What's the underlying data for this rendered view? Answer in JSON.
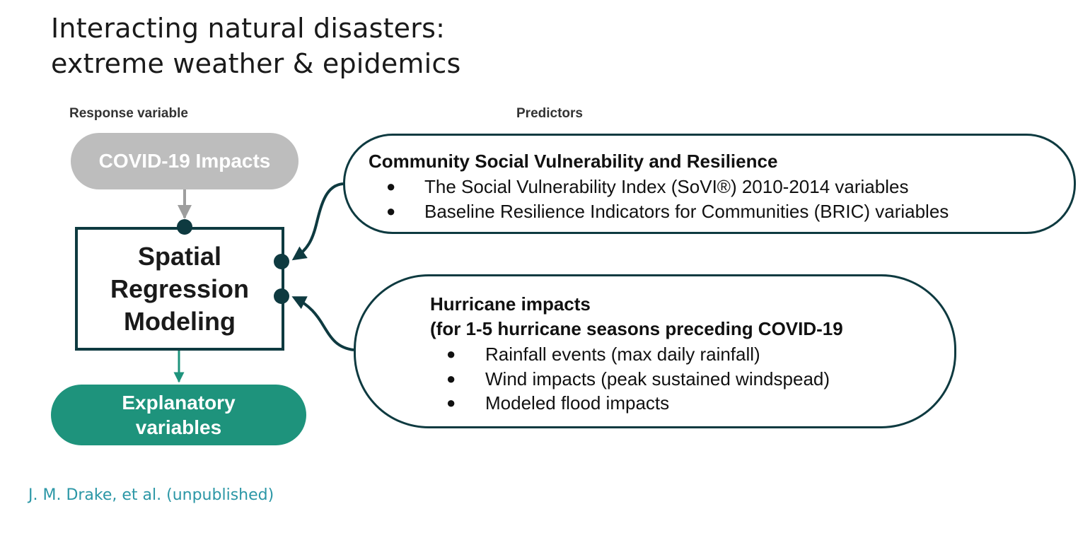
{
  "title": {
    "line1": "Interacting natural disasters:",
    "line2": "extreme weather & epidemics"
  },
  "labels": {
    "response": "Response variable",
    "predictors": "Predictors"
  },
  "nodes": {
    "covid": "COVID-19 Impacts",
    "model": [
      "Spatial",
      "Regression",
      "Modeling"
    ],
    "explanatory": [
      "Explanatory",
      "variables"
    ]
  },
  "predictor1": {
    "heading": "Community Social Vulnerability and Resilience",
    "items": [
      "The Social Vulnerability Index (SoVI®) 2010-2014 variables",
      "Baseline Resilience Indicators for Communities (BRIC) variables"
    ]
  },
  "predictor2": {
    "heading1": "Hurricane impacts",
    "heading2": "(for 1-5 hurricane seasons preceding COVID-19",
    "items": [
      "Rainfall events (max daily rainfall)",
      "Wind impacts (peak sustained windspead)",
      "Modeled flood impacts"
    ]
  },
  "bullet_char": "●",
  "citation": "J. M. Drake, et al. (unpublished)",
  "colors": {
    "dark_teal": "#0e3a40",
    "gray": "#bdbdbd",
    "green": "#1e937c",
    "citation": "#2b97a6"
  }
}
